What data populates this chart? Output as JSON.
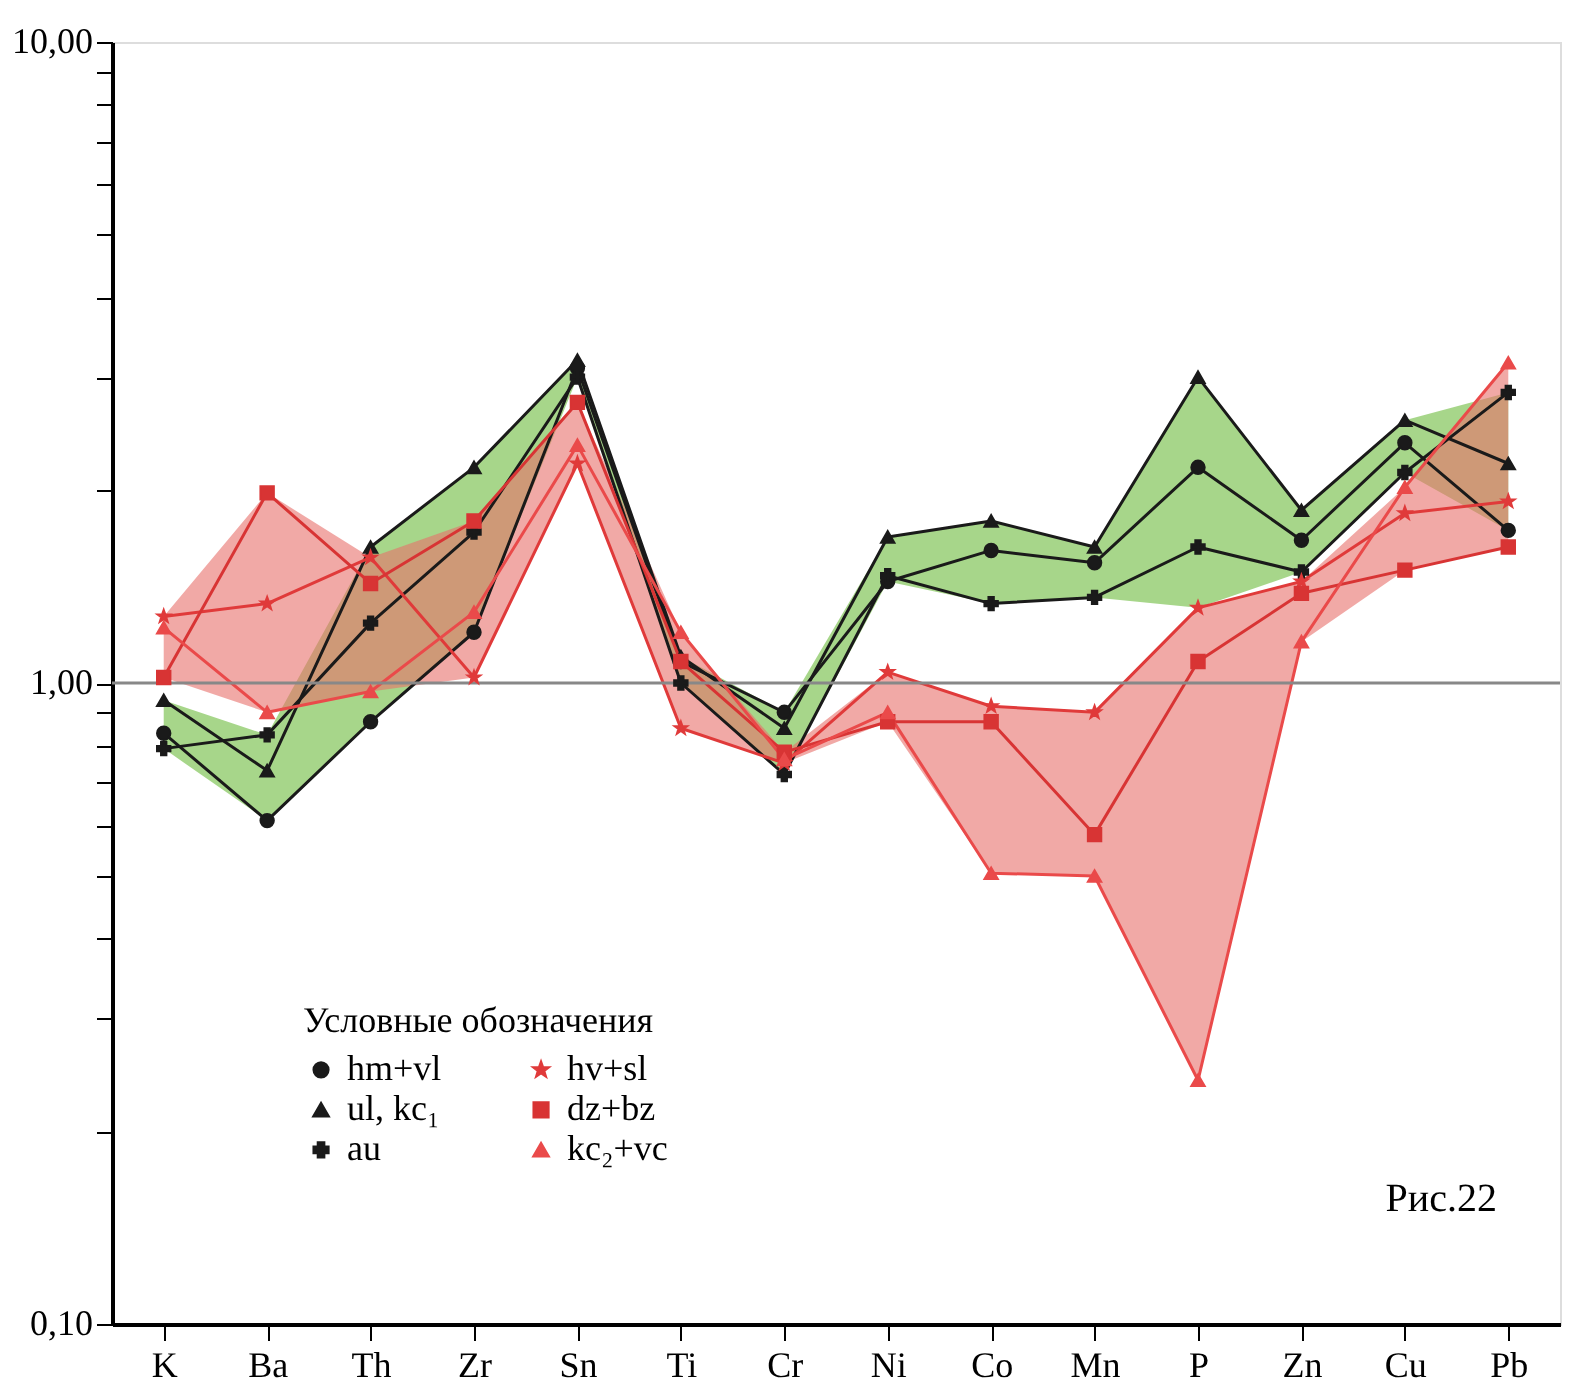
{
  "chart_data": {
    "type": "line",
    "categories": [
      "K",
      "Ba",
      "Th",
      "Zr",
      "Sn",
      "Ti",
      "Cr",
      "Ni",
      "Co",
      "Mn",
      "P",
      "Zn",
      "Cu",
      "Pb"
    ],
    "series": [
      {
        "name": "hm+vl",
        "color": "#1a1a1a",
        "marker": "circle",
        "values": [
          0.835,
          0.61,
          0.87,
          1.2,
          3.1,
          1.08,
          0.9,
          1.44,
          1.61,
          1.54,
          2.17,
          1.67,
          2.37,
          1.73
        ]
      },
      {
        "name": "ul, kc₁",
        "color": "#1a1a1a",
        "marker": "triangle",
        "values": [
          0.94,
          0.73,
          1.63,
          2.17,
          3.19,
          1.1,
          0.85,
          1.69,
          1.79,
          1.63,
          3.0,
          1.86,
          2.57,
          2.2
        ],
        "lower": [
          0.79,
          0.61,
          0.87,
          1.2,
          3.0,
          1.0,
          0.72,
          1.44,
          1.33,
          1.36,
          1.31,
          1.49,
          2.13,
          1.73
        ],
        "upper": [
          0.94,
          0.83,
          1.63,
          2.17,
          3.19,
          1.1,
          0.9,
          1.69,
          1.79,
          1.63,
          3.0,
          1.86,
          2.57,
          2.84
        ]
      },
      {
        "name": "au",
        "color": "#1a1a1a",
        "marker": "cross",
        "values": [
          0.79,
          0.83,
          1.24,
          1.72,
          3.0,
          1.0,
          0.72,
          1.47,
          1.33,
          1.36,
          1.63,
          1.49,
          2.13,
          2.84
        ]
      },
      {
        "name": "hv+sl",
        "color": "#e03a3a",
        "marker": "star",
        "values": [
          1.27,
          1.33,
          1.57,
          1.02,
          2.2,
          0.85,
          0.75,
          1.04,
          0.92,
          0.9,
          1.31,
          1.44,
          1.84,
          1.92
        ]
      },
      {
        "name": "dz+bz",
        "color": "#d83434",
        "marker": "square",
        "values": [
          1.02,
          1.98,
          1.43,
          1.79,
          2.74,
          1.08,
          0.78,
          0.87,
          0.87,
          0.58,
          1.08,
          1.38,
          1.5,
          1.63
        ]
      },
      {
        "name": "kc₂+vc",
        "color": "#ea4a4a",
        "marker": "triangle",
        "values": [
          1.22,
          0.9,
          0.97,
          1.29,
          2.35,
          1.2,
          0.76,
          0.9,
          0.505,
          0.5,
          0.24,
          1.16,
          2.02,
          3.16
        ],
        "lower": [
          1.02,
          0.9,
          0.97,
          1.02,
          2.2,
          0.85,
          0.75,
          0.87,
          0.505,
          0.5,
          0.24,
          1.16,
          1.5,
          1.63
        ],
        "upper": [
          1.27,
          1.98,
          1.57,
          1.79,
          2.74,
          1.2,
          0.78,
          1.04,
          0.92,
          0.9,
          1.31,
          1.44,
          2.02,
          3.16
        ]
      }
    ],
    "log": true,
    "ylim": [
      0.1,
      10
    ],
    "yticks": [
      {
        "value": 0.1,
        "label": "0,10"
      },
      {
        "value": 0.2,
        "label": null
      },
      {
        "value": 0.3,
        "label": null
      },
      {
        "value": 0.4,
        "label": null
      },
      {
        "value": 0.5,
        "label": null
      },
      {
        "value": 0.6,
        "label": null
      },
      {
        "value": 0.7,
        "label": null
      },
      {
        "value": 0.8,
        "label": null
      },
      {
        "value": 0.9,
        "label": null
      },
      {
        "value": 1,
        "label": "1,00"
      },
      {
        "value": 2,
        "label": null
      },
      {
        "value": 3,
        "label": null
      },
      {
        "value": 4,
        "label": null
      },
      {
        "value": 5,
        "label": null
      },
      {
        "value": 6,
        "label": null
      },
      {
        "value": 7,
        "label": null
      },
      {
        "value": 8,
        "label": null
      },
      {
        "value": 9,
        "label": null
      },
      {
        "value": 10,
        "label": "10,00"
      }
    ],
    "ref_lines": [
      {
        "axis": "y",
        "value": 1,
        "color": "#888888"
      }
    ],
    "legend": "bottom left",
    "legend_title": "Условные обозначения",
    "grid": false,
    "annotations": [
      "Рис.22"
    ]
  }
}
